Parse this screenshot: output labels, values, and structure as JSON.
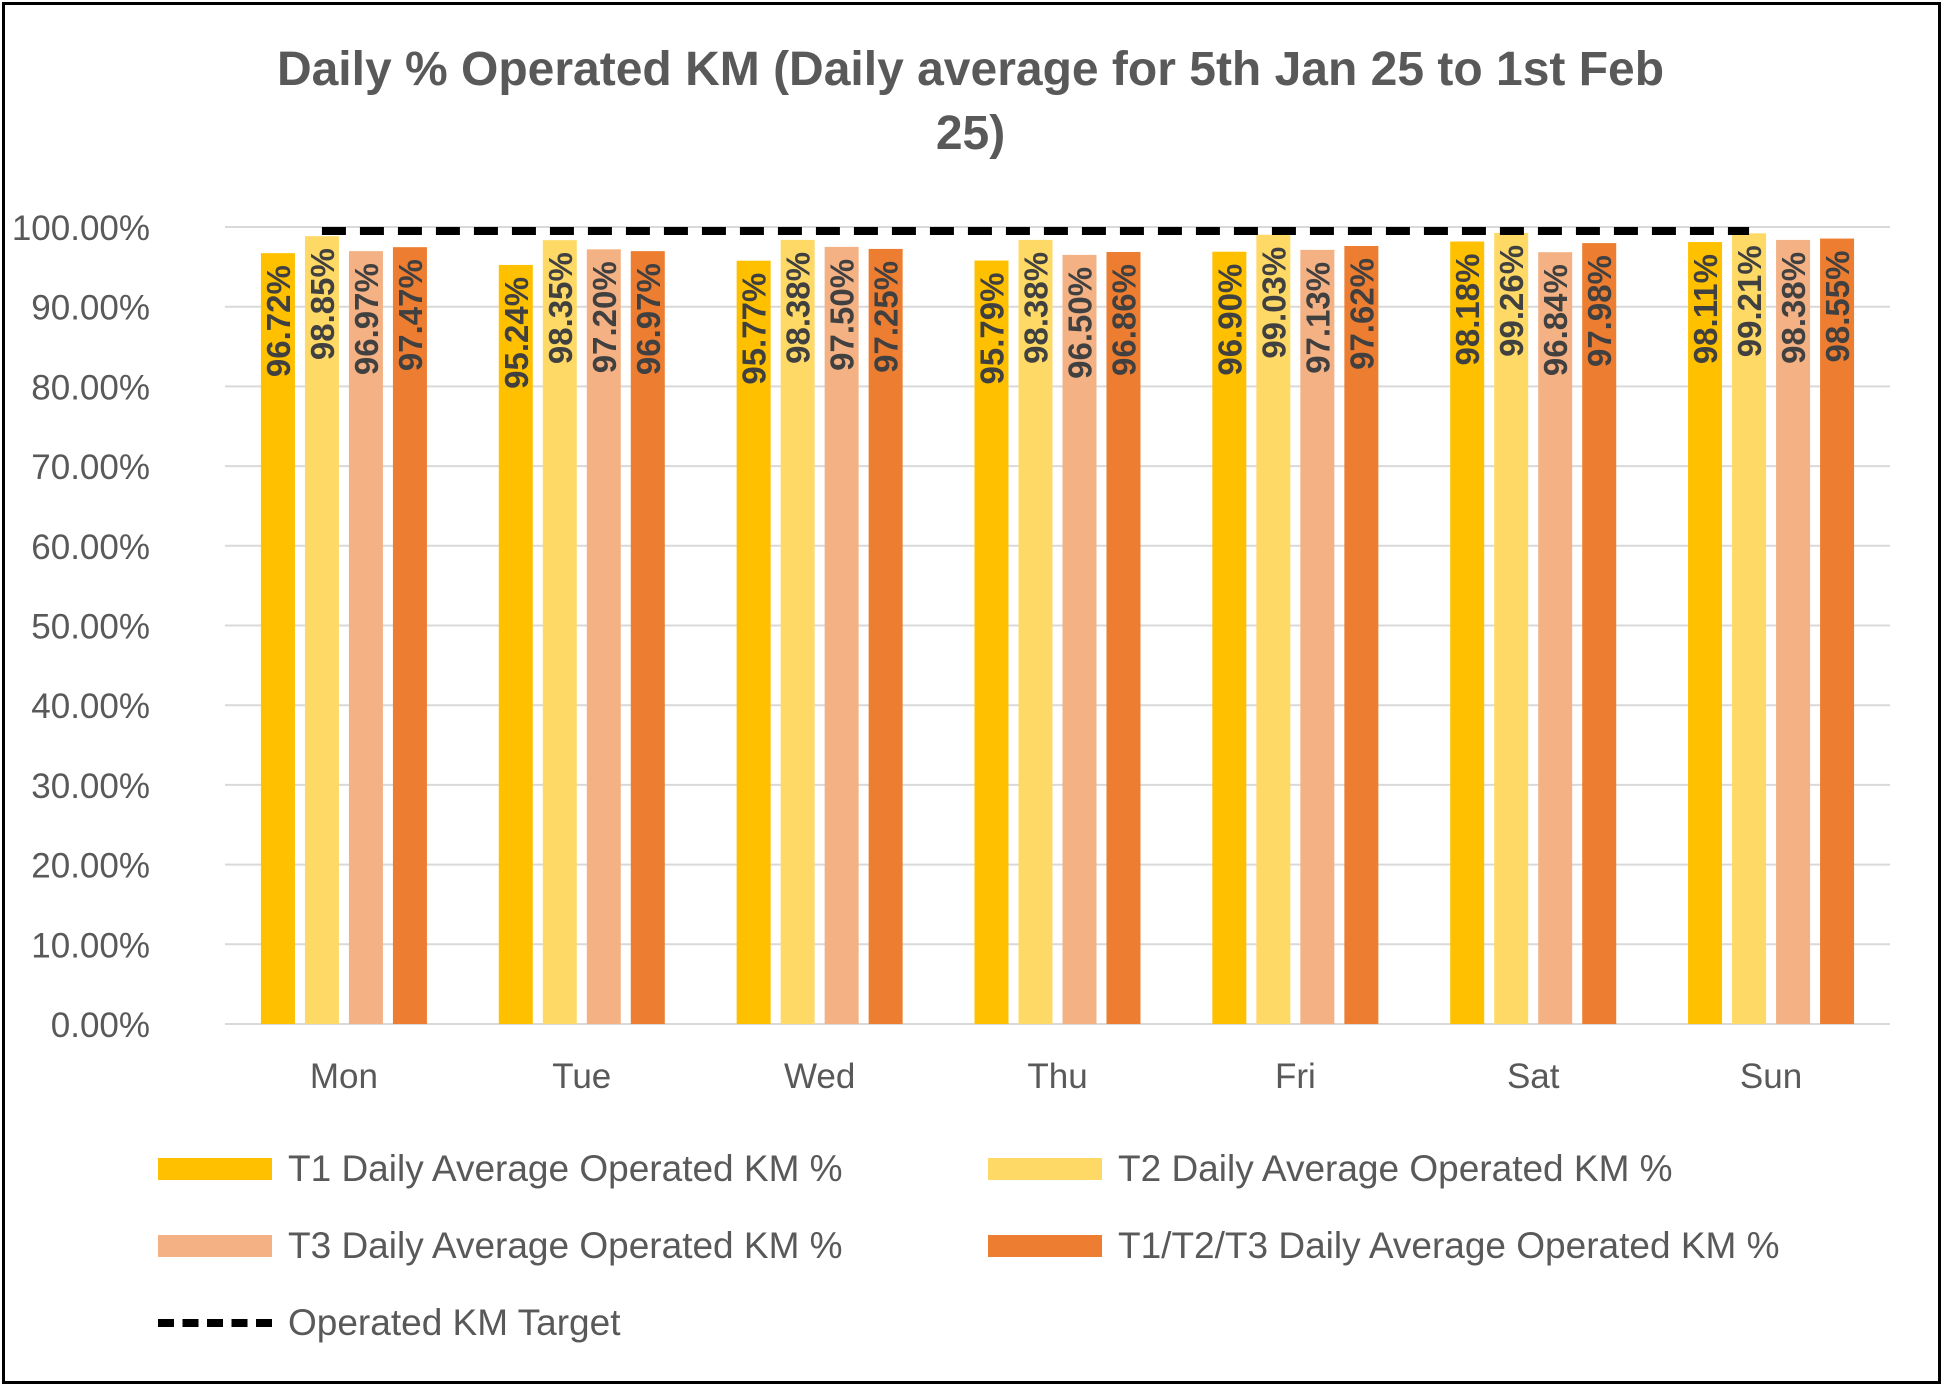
{
  "chart_data": {
    "type": "bar",
    "title": "Daily % Operated KM (Daily average for 5th Jan 25 to 1st Feb 25)",
    "title_lines": [
      "Daily % Operated KM (Daily average for 5th Jan 25 to 1st Feb",
      "25)"
    ],
    "xlabel": "",
    "ylabel": "",
    "categories": [
      "Mon",
      "Tue",
      "Wed",
      "Thu",
      "Fri",
      "Sat",
      "Sun"
    ],
    "ylim": [
      0,
      100
    ],
    "yticks": [
      "0.00%",
      "10.00%",
      "20.00%",
      "30.00%",
      "40.00%",
      "50.00%",
      "60.00%",
      "70.00%",
      "80.00%",
      "90.00%",
      "100.00%"
    ],
    "grid": true,
    "legend_position": "bottom",
    "series": [
      {
        "name": "T1 Daily Average Operated KM %",
        "color": "#FFC000",
        "values": [
          96.72,
          95.24,
          95.77,
          95.79,
          96.9,
          98.18,
          98.11
        ],
        "labels": [
          "96.72%",
          "95.24%",
          "95.77%",
          "95.79%",
          "96.90%",
          "98.18%",
          "98.11%"
        ]
      },
      {
        "name": "T2 Daily Average Operated KM %",
        "color": "#FFD966",
        "values": [
          98.85,
          98.35,
          98.38,
          98.38,
          99.03,
          99.26,
          99.21
        ],
        "labels": [
          "98.85%",
          "98.35%",
          "98.38%",
          "98.38%",
          "99.03%",
          "99.26%",
          "99.21%"
        ]
      },
      {
        "name": "T3 Daily Average Operated KM %",
        "color": "#F4B183",
        "values": [
          96.97,
          97.2,
          97.5,
          96.5,
          97.13,
          96.84,
          98.38
        ],
        "labels": [
          "96.97%",
          "97.20%",
          "97.50%",
          "96.50%",
          "97.13%",
          "96.84%",
          "98.38%"
        ]
      },
      {
        "name": "T1/T2/T3 Daily Average Operated KM %",
        "color": "#ED7D31",
        "values": [
          97.47,
          96.97,
          97.25,
          96.86,
          97.62,
          97.98,
          98.55
        ],
        "labels": [
          "97.47%",
          "96.97%",
          "97.25%",
          "96.86%",
          "97.62%",
          "97.98%",
          "98.55%"
        ]
      }
    ],
    "target": {
      "name": "Operated KM Target",
      "value": 99,
      "color": "#000000",
      "style": "dashed"
    }
  }
}
